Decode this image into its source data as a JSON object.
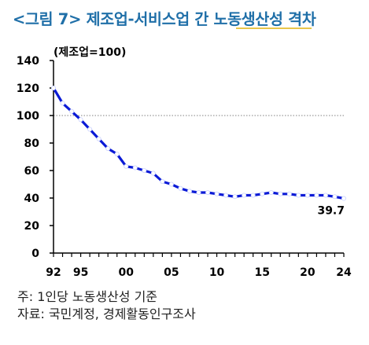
{
  "title": "<그림 7> 제조업-서비스업 간 노동생산성 격차",
  "footer": {
    "note": "주: 1인당 노동생산성 기준",
    "source": "자료: 국민계정, 경제활동인구조사"
  },
  "colors": {
    "title": "#1f6fa8",
    "line": "#0a1ad6",
    "reference": "#9a9a9a"
  },
  "chart_data": {
    "type": "line",
    "unit_label": "(제조업=100)",
    "xlabel": "",
    "ylabel": "",
    "ylim": [
      0,
      140
    ],
    "y_ticks": [
      0,
      20,
      40,
      60,
      80,
      100,
      120,
      140
    ],
    "xlim": [
      1992,
      2024
    ],
    "x_tick_labels": [
      {
        "x": 1992,
        "label": "92"
      },
      {
        "x": 1995,
        "label": "95"
      },
      {
        "x": 2000,
        "label": "00"
      },
      {
        "x": 2005,
        "label": "05"
      },
      {
        "x": 2010,
        "label": "10"
      },
      {
        "x": 2015,
        "label": "15"
      },
      {
        "x": 2020,
        "label": "20"
      },
      {
        "x": 2024,
        "label": "24"
      }
    ],
    "grid": false,
    "legend": "none",
    "reference_line": 100,
    "series": [
      {
        "points": [
          [
            1992.0,
            120
          ],
          [
            1993.0,
            109
          ],
          [
            1994.0,
            103
          ],
          [
            1995.0,
            97
          ],
          [
            1996.0,
            90
          ],
          [
            1997.0,
            83
          ],
          [
            1998.0,
            76
          ],
          [
            1999.0,
            72
          ],
          [
            2000.0,
            63
          ],
          [
            2001.0,
            62
          ],
          [
            2002.0,
            60
          ],
          [
            2003.0,
            58
          ],
          [
            2004.0,
            52
          ],
          [
            2005.0,
            50
          ],
          [
            2006.0,
            47
          ],
          [
            2007.0,
            45
          ],
          [
            2008.0,
            44
          ],
          [
            2009.0,
            44
          ],
          [
            2010.0,
            43
          ],
          [
            2011.0,
            42
          ],
          [
            2012.0,
            41
          ],
          [
            2013.0,
            42
          ],
          [
            2014.0,
            42
          ],
          [
            2015.0,
            43
          ],
          [
            2016.0,
            44
          ],
          [
            2017.0,
            43
          ],
          [
            2018.0,
            43
          ],
          [
            2019.0,
            42
          ],
          [
            2020.0,
            42
          ],
          [
            2021.0,
            42
          ],
          [
            2022.0,
            42
          ],
          [
            2023.0,
            41
          ],
          [
            2024.0,
            39.7
          ]
        ]
      }
    ],
    "annotations": [
      {
        "x": 2024,
        "y": 39.7,
        "text": "39.7"
      }
    ]
  }
}
